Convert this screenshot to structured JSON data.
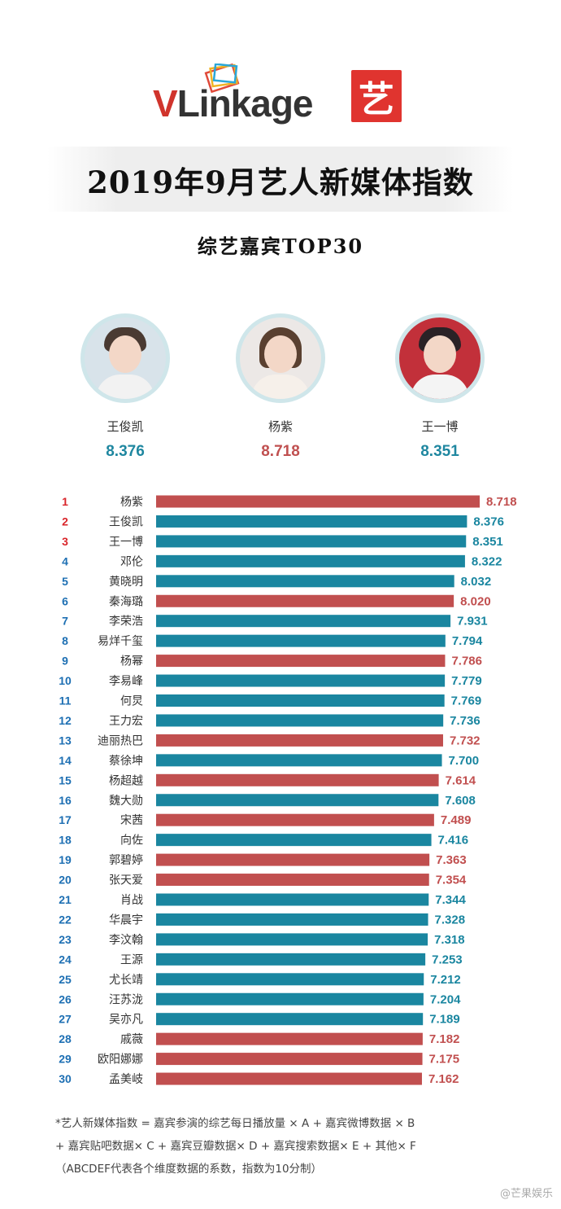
{
  "header": {
    "brand_text_v": "V",
    "brand_text_rest": "Linkage",
    "yi_char": "艺",
    "title": "2019年9月艺人新媒体指数",
    "subtitle": "综艺嘉宾TOP30"
  },
  "podium": [
    {
      "name": "王俊凯",
      "score": "8.376",
      "color": "#1f87a0"
    },
    {
      "name": "杨紫",
      "score": "8.718",
      "color": "#c05050"
    },
    {
      "name": "王一博",
      "score": "8.351",
      "color": "#1f87a0"
    }
  ],
  "chart_data": {
    "type": "bar",
    "orientation": "horizontal",
    "title": "",
    "xlabel": "",
    "ylabel": "",
    "colors": {
      "male": "#1a86a0",
      "female": "#c14f4f",
      "rank_top": "#d9252a",
      "rank": "#1d6fb3"
    },
    "xlim": [
      0,
      8.718
    ],
    "ranks": [
      1,
      2,
      3,
      4,
      5,
      6,
      7,
      8,
      9,
      10,
      11,
      12,
      13,
      14,
      15,
      16,
      17,
      18,
      19,
      20,
      21,
      22,
      23,
      24,
      25,
      26,
      27,
      28,
      29,
      30
    ],
    "categories": [
      "杨紫",
      "王俊凯",
      "王一博",
      "邓伦",
      "黄晓明",
      "秦海璐",
      "李荣浩",
      "易烊千玺",
      "杨幂",
      "李易峰",
      "何炅",
      "王力宏",
      "迪丽热巴",
      "蔡徐坤",
      "杨超越",
      "魏大勋",
      "宋茜",
      "向佐",
      "郭碧婷",
      "张天爱",
      "肖战",
      "华晨宇",
      "李汶翰",
      "王源",
      "尤长靖",
      "汪苏泷",
      "吴亦凡",
      "戚薇",
      "欧阳娜娜",
      "孟美岐"
    ],
    "values": [
      8.718,
      8.376,
      8.351,
      8.322,
      8.032,
      8.02,
      7.931,
      7.794,
      7.786,
      7.779,
      7.769,
      7.736,
      7.732,
      7.7,
      7.614,
      7.608,
      7.489,
      7.416,
      7.363,
      7.354,
      7.344,
      7.328,
      7.318,
      7.253,
      7.212,
      7.204,
      7.189,
      7.182,
      7.175,
      7.162
    ],
    "labels": [
      "8.718",
      "8.376",
      "8.351",
      "8.322",
      "8.032",
      "8.020",
      "7.931",
      "7.794",
      "7.786",
      "7.779",
      "7.769",
      "7.736",
      "7.732",
      "7.700",
      "7.614",
      "7.608",
      "7.489",
      "7.416",
      "7.363",
      "7.354",
      "7.344",
      "7.328",
      "7.318",
      "7.253",
      "7.212",
      "7.204",
      "7.189",
      "7.182",
      "7.175",
      "7.162"
    ],
    "gender": [
      "F",
      "M",
      "M",
      "M",
      "M",
      "F",
      "M",
      "M",
      "F",
      "M",
      "M",
      "M",
      "F",
      "M",
      "F",
      "M",
      "F",
      "M",
      "F",
      "F",
      "M",
      "M",
      "M",
      "M",
      "M",
      "M",
      "M",
      "F",
      "F",
      "F"
    ]
  },
  "footnote": {
    "line1": "*艺人新媒体指数 = 嘉宾参演的综艺每日播放量 × A + 嘉宾微博数据 × B",
    "line2": "+ 嘉宾贴吧数据× C + 嘉宾豆瓣数据× D + 嘉宾搜索数据× E + 其他× F",
    "line3": "（ABCDEF代表各个维度数据的系数，指数为10分制）"
  },
  "watermark": "@芒果娱乐"
}
